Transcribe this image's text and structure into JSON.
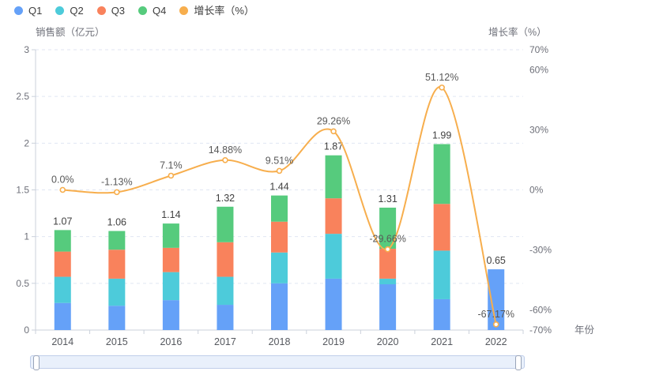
{
  "legend": {
    "items": [
      {
        "label": "Q1",
        "color": "#65A1F8"
      },
      {
        "label": "Q2",
        "color": "#4DCBDA"
      },
      {
        "label": "Q3",
        "color": "#F9825C"
      },
      {
        "label": "Q4",
        "color": "#56CB7D"
      },
      {
        "label": "增长率（%）",
        "color": "#F7AE4D"
      }
    ]
  },
  "chart_data": {
    "type": "bar",
    "subtype": "stacked-bar with smooth line on secondary axis",
    "title": "",
    "categories": [
      "2014",
      "2015",
      "2016",
      "2017",
      "2018",
      "2019",
      "2020",
      "2021",
      "2022"
    ],
    "series": [
      {
        "name": "Q1",
        "type": "bar",
        "stack": "sales",
        "color": "#65A1F8",
        "values": [
          0.29,
          0.26,
          0.32,
          0.27,
          0.5,
          0.55,
          0.49,
          0.33,
          0.65
        ]
      },
      {
        "name": "Q2",
        "type": "bar",
        "stack": "sales",
        "color": "#4DCBDA",
        "values": [
          0.28,
          0.29,
          0.3,
          0.3,
          0.33,
          0.48,
          0.06,
          0.52,
          0.0
        ]
      },
      {
        "name": "Q3",
        "type": "bar",
        "stack": "sales",
        "color": "#F9825C",
        "values": [
          0.27,
          0.31,
          0.26,
          0.37,
          0.33,
          0.38,
          0.32,
          0.5,
          0.0
        ]
      },
      {
        "name": "Q4",
        "type": "bar",
        "stack": "sales",
        "color": "#56CB7D",
        "values": [
          0.23,
          0.2,
          0.26,
          0.38,
          0.28,
          0.46,
          0.44,
          0.64,
          0.0
        ]
      },
      {
        "name": "增长率（%）",
        "type": "line",
        "axis": "right",
        "color": "#F7AE4D",
        "smooth": true,
        "values": [
          0.0,
          -1.13,
          7.1,
          14.88,
          9.51,
          29.26,
          -29.66,
          51.12,
          -67.17
        ],
        "labels": [
          "0.0%",
          "-1.13%",
          "7.1%",
          "14.88%",
          "9.51%",
          "29.26%",
          "-29.66%",
          "51.12%",
          "-67.17%"
        ]
      }
    ],
    "totals": {
      "values": [
        1.07,
        1.06,
        1.14,
        1.32,
        1.44,
        1.87,
        1.31,
        1.99,
        0.65
      ],
      "labels": [
        "1.07",
        "1.06",
        "1.14",
        "1.32",
        "1.44",
        "1.87",
        "1.31",
        "1.99",
        "0.65"
      ]
    },
    "y_left": {
      "title": "销售额（亿元）",
      "min": 0,
      "max": 3,
      "ticks": [
        {
          "v": 3,
          "label": "3"
        },
        {
          "v": 2.5,
          "label": "2.5"
        },
        {
          "v": 2,
          "label": "2"
        },
        {
          "v": 1.5,
          "label": "1.5"
        },
        {
          "v": 1,
          "label": "1"
        },
        {
          "v": 0.5,
          "label": "0.5"
        },
        {
          "v": 0,
          "label": "0"
        }
      ]
    },
    "y_right": {
      "title": "增长率（%）",
      "min": -70,
      "max": 70,
      "ticks": [
        {
          "v": 70,
          "label": "70%"
        },
        {
          "v": 60,
          "label": "60%"
        },
        {
          "v": 30,
          "label": "30%"
        },
        {
          "v": 0,
          "label": "0%"
        },
        {
          "v": -30,
          "label": "-30%"
        },
        {
          "v": -60,
          "label": "-60%"
        },
        {
          "v": -70,
          "label": "-70%"
        }
      ]
    },
    "x_title": "年份",
    "grid": "horizontal dashed gridlines",
    "legend_position": "top-left"
  },
  "colors": {
    "grid_line": "#E0E6F2",
    "axis_line": "#CBD1DB",
    "axis_text": "#6E7079",
    "x_axis_text": "#55585E",
    "bar_label": "#404040",
    "line_label": "#585858",
    "marker_fill": "#FFFFFF",
    "slider_fill": "#E9F0FB",
    "slider_border": "#C0CEEA",
    "slider_handle_border": "#99A4B8",
    "background": "#FFFFFF"
  },
  "datazoom": {
    "start": "0%",
    "end": "100%"
  }
}
